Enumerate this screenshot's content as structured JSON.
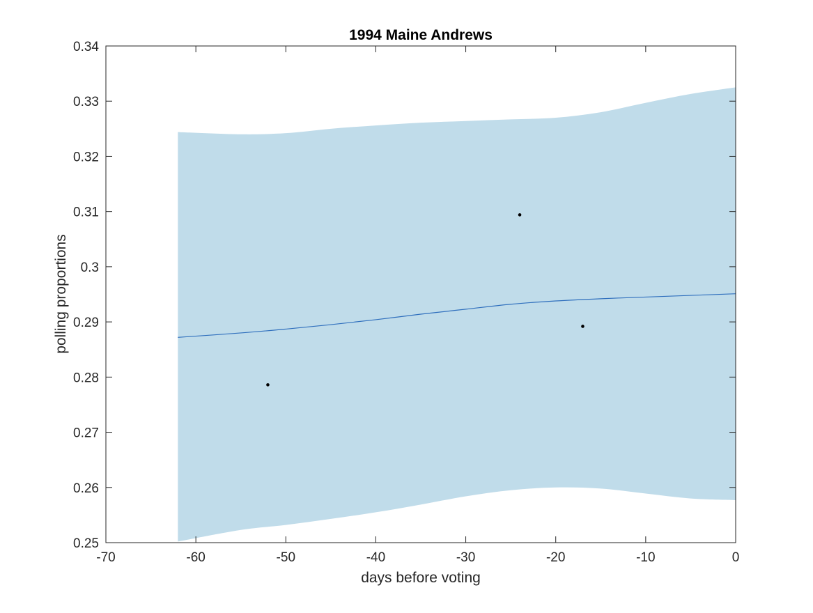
{
  "chart_data": {
    "type": "line",
    "title": "1994 Maine Andrews",
    "xlabel": "days before voting",
    "ylabel": "polling proportions",
    "xlim": [
      -70,
      0
    ],
    "ylim": [
      0.25,
      0.34
    ],
    "xticks": [
      -70,
      -60,
      -50,
      -40,
      -30,
      -20,
      -10,
      0
    ],
    "xtick_labels": [
      "-70",
      "-60",
      "-50",
      "-40",
      "-30",
      "-20",
      "-10",
      "0"
    ],
    "yticks": [
      0.25,
      0.26,
      0.27,
      0.28,
      0.29,
      0.3,
      0.31,
      0.32,
      0.33,
      0.34
    ],
    "ytick_labels": [
      "0.25",
      "0.26",
      "0.27",
      "0.28",
      "0.29",
      "0.3",
      "0.31",
      "0.32",
      "0.33",
      "0.34"
    ],
    "grid": false,
    "band": {
      "x": [
        -62,
        -55,
        -50,
        -45,
        -40,
        -35,
        -30,
        -25,
        -20,
        -15,
        -10,
        -5,
        0
      ],
      "upper": [
        0.3244,
        0.324,
        0.3242,
        0.325,
        0.3256,
        0.3261,
        0.3264,
        0.3267,
        0.327,
        0.328,
        0.3297,
        0.3313,
        0.3325
      ],
      "lower": [
        0.2502,
        0.2523,
        0.2532,
        0.2543,
        0.2555,
        0.2569,
        0.2584,
        0.2595,
        0.26,
        0.2598,
        0.2589,
        0.258,
        0.2577
      ],
      "color": "#c0dcea"
    },
    "series": [
      {
        "x": [
          -62,
          -55,
          -50,
          -45,
          -40,
          -35,
          -30,
          -25,
          -20,
          -15,
          -10,
          -5,
          0
        ],
        "values": [
          0.2872,
          0.288,
          0.2887,
          0.2895,
          0.2904,
          0.2914,
          0.2923,
          0.2932,
          0.2938,
          0.2942,
          0.2945,
          0.2948,
          0.2951
        ],
        "color": "#2f6fbd"
      }
    ],
    "points": {
      "x": [
        -52,
        -24,
        -17
      ],
      "y": [
        0.2786,
        0.3094,
        0.2892
      ],
      "color": "#000000"
    }
  }
}
